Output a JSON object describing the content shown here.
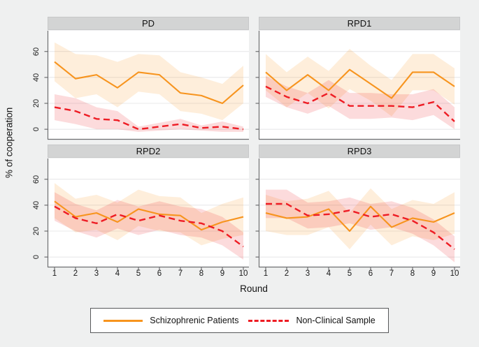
{
  "figure": {
    "background": "#eff0f0",
    "plot_background": "#ffffff",
    "panel_header_background": "#d3d4d4",
    "gridline_color": "#e8e8ea",
    "axis_color": "#6e6f71",
    "band_opacity": 0.16
  },
  "legend": {
    "items": [
      {
        "label": "Schizophrenic Patients",
        "color": "#f7941e",
        "style": "solid"
      },
      {
        "label": "Non-Clinical Sample",
        "color": "#ee1c24",
        "style": "dashed"
      }
    ]
  },
  "chart_data": {
    "type": "line",
    "x": [
      1,
      2,
      3,
      4,
      5,
      6,
      7,
      8,
      9,
      10
    ],
    "xlabel": "Round",
    "ylabel": "% of cooperation",
    "yticks": [
      0,
      20,
      40,
      60
    ],
    "ylim": [
      -8,
      76
    ],
    "grid": true,
    "legend_position": "bottom",
    "panels": [
      {
        "title": "PD",
        "series": [
          {
            "name": "Schizophrenic Patients",
            "color": "#f7941e",
            "style": "solid",
            "values": [
              52,
              39,
              42,
              32,
              44,
              42,
              28,
              26,
              20,
              34
            ],
            "upper": [
              67,
              58,
              57,
              52,
              58,
              57,
              44,
              40,
              35,
              49
            ],
            "lower": [
              37,
              24,
              27,
              17,
              29,
              27,
              14,
              12,
              7,
              20
            ]
          },
          {
            "name": "Non-Clinical Sample",
            "color": "#ee1c24",
            "style": "dashed",
            "values": [
              17,
              14,
              8,
              7,
              0,
              2,
              4,
              1,
              2,
              0
            ],
            "upper": [
              27,
              24,
              17,
              14,
              2,
              5,
              8,
              3,
              6,
              2
            ],
            "lower": [
              7,
              4,
              0,
              0,
              -2,
              -1,
              0,
              -1,
              -2,
              -2
            ]
          }
        ]
      },
      {
        "title": "RPD1",
        "series": [
          {
            "name": "Schizophrenic Patients",
            "color": "#f7941e",
            "style": "solid",
            "values": [
              44,
              30,
              42,
              30,
              46,
              35,
              24,
              44,
              44,
              33
            ],
            "upper": [
              58,
              44,
              56,
              45,
              62,
              49,
              38,
              58,
              58,
              47
            ],
            "lower": [
              30,
              17,
              28,
              16,
              31,
              22,
              10,
              30,
              30,
              19
            ]
          },
          {
            "name": "Non-Clinical Sample",
            "color": "#ee1c24",
            "style": "dashed",
            "values": [
              33,
              25,
              20,
              28,
              18,
              18,
              18,
              17,
              21,
              6
            ],
            "upper": [
              41,
              33,
              28,
              38,
              28,
              28,
              27,
              27,
              31,
              17
            ],
            "lower": [
              25,
              17,
              12,
              18,
              8,
              8,
              9,
              7,
              11,
              0
            ]
          }
        ]
      },
      {
        "title": "RPD2",
        "series": [
          {
            "name": "Schizophrenic Patients",
            "color": "#f7941e",
            "style": "solid",
            "values": [
              43,
              31,
              34,
              27,
              37,
              33,
              32,
              21,
              27,
              31
            ],
            "upper": [
              57,
              45,
              48,
              42,
              52,
              47,
              46,
              34,
              41,
              46
            ],
            "lower": [
              30,
              19,
              21,
              13,
              24,
              20,
              19,
              9,
              14,
              17
            ]
          },
          {
            "name": "Non-Clinical Sample",
            "color": "#ee1c24",
            "style": "dashed",
            "values": [
              39,
              30,
              26,
              33,
              28,
              32,
              28,
              26,
              20,
              8
            ],
            "upper": [
              50,
              41,
              36,
              44,
              39,
              43,
              39,
              37,
              31,
              19
            ],
            "lower": [
              28,
              20,
              15,
              22,
              17,
              21,
              17,
              15,
              9,
              -2
            ]
          }
        ]
      },
      {
        "title": "RPD3",
        "series": [
          {
            "name": "Schizophrenic Patients",
            "color": "#f7941e",
            "style": "solid",
            "values": [
              34,
              30,
              31,
              37,
              20,
              39,
              23,
              30,
              27,
              34
            ],
            "upper": [
              48,
              43,
              45,
              51,
              34,
              53,
              37,
              44,
              41,
              50
            ],
            "lower": [
              20,
              17,
              17,
              23,
              6,
              25,
              9,
              16,
              13,
              18
            ]
          },
          {
            "name": "Non-Clinical Sample",
            "color": "#ee1c24",
            "style": "dashed",
            "values": [
              41,
              41,
              32,
              33,
              36,
              31,
              33,
              28,
              19,
              6
            ],
            "upper": [
              52,
              52,
              42,
              43,
              46,
              41,
              43,
              38,
              29,
              16
            ],
            "lower": [
              30,
              30,
              22,
              23,
              26,
              21,
              23,
              18,
              9,
              -4
            ]
          }
        ]
      }
    ]
  }
}
